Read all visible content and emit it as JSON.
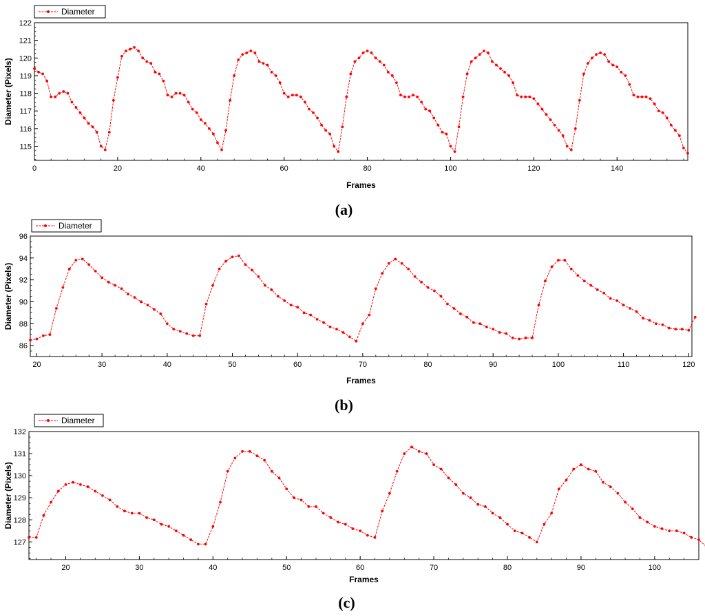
{
  "series_color": "#ff0000",
  "chart_data": [
    {
      "type": "line",
      "caption": "(a)",
      "xlabel": "Frames",
      "ylabel": "Diameter (Pixels)",
      "xlim": [
        0,
        157
      ],
      "ylim": [
        114.2,
        122
      ],
      "xticks": [
        0,
        20,
        40,
        60,
        80,
        100,
        120,
        140
      ],
      "yticks": [
        115,
        116,
        117,
        118,
        119,
        120,
        121,
        122
      ],
      "legend": "top-left",
      "grid": false,
      "series": [
        {
          "name": "Diameter",
          "x0": 0,
          "values": [
            119.4,
            119.2,
            119.1,
            118.7,
            117.8,
            117.8,
            118.0,
            118.1,
            118.0,
            117.5,
            117.2,
            116.9,
            116.6,
            116.3,
            116.1,
            115.8,
            115.0,
            114.8,
            115.8,
            117.6,
            118.9,
            120.1,
            120.4,
            120.5,
            120.6,
            120.4,
            120.0,
            119.8,
            119.7,
            119.2,
            119.1,
            118.7,
            117.9,
            117.8,
            118.0,
            118.0,
            117.9,
            117.5,
            117.1,
            116.9,
            116.5,
            116.3,
            116.0,
            115.7,
            115.2,
            114.8,
            115.9,
            117.6,
            119.0,
            119.9,
            120.2,
            120.3,
            120.4,
            120.3,
            119.8,
            119.7,
            119.6,
            119.2,
            119.0,
            118.6,
            118.0,
            117.8,
            117.9,
            117.9,
            117.8,
            117.5,
            117.1,
            116.9,
            116.6,
            116.2,
            115.9,
            115.7,
            115.0,
            114.7,
            116.1,
            117.8,
            119.1,
            119.8,
            120.0,
            120.3,
            120.4,
            120.3,
            120.0,
            119.8,
            119.6,
            119.2,
            119.0,
            118.6,
            117.9,
            117.8,
            117.8,
            117.9,
            117.8,
            117.5,
            117.1,
            117.0,
            116.6,
            116.2,
            115.8,
            115.7,
            115.0,
            114.7,
            116.1,
            117.8,
            119.1,
            119.8,
            120.0,
            120.2,
            120.4,
            120.3,
            119.8,
            119.6,
            119.4,
            119.2,
            119.0,
            118.6,
            117.9,
            117.8,
            117.8,
            117.8,
            117.7,
            117.4,
            117.1,
            116.8,
            116.5,
            116.2,
            115.9,
            115.6,
            115.0,
            114.8,
            116.0,
            117.6,
            119.1,
            119.7,
            120.0,
            120.2,
            120.3,
            120.2,
            119.8,
            119.6,
            119.5,
            119.2,
            119.0,
            118.5,
            117.9,
            117.8,
            117.8,
            117.8,
            117.7,
            117.4,
            117.0,
            116.9,
            116.6,
            116.2,
            115.9,
            115.6,
            114.9,
            114.6
          ]
        }
      ]
    },
    {
      "type": "line",
      "caption": "(b)",
      "xlabel": "Frames",
      "ylabel": "Diameter (Pixels)",
      "xlim": [
        19,
        120.5
      ],
      "ylim": [
        85,
        96
      ],
      "xticks": [
        20,
        30,
        40,
        50,
        60,
        70,
        80,
        90,
        100,
        110,
        120
      ],
      "yticks": [
        86,
        88,
        90,
        92,
        94,
        96
      ],
      "legend": "top-left",
      "grid": false,
      "series": [
        {
          "name": "Diameter",
          "x0": 19,
          "values": [
            86.5,
            86.6,
            86.9,
            87.0,
            89.4,
            91.3,
            93.0,
            93.8,
            93.9,
            93.4,
            92.8,
            92.2,
            91.8,
            91.5,
            91.2,
            90.7,
            90.4,
            90.0,
            89.7,
            89.3,
            88.9,
            88.0,
            87.5,
            87.3,
            87.1,
            86.9,
            86.9,
            89.8,
            91.5,
            93.0,
            93.7,
            94.1,
            94.2,
            93.4,
            92.9,
            92.3,
            91.5,
            91.1,
            90.5,
            90.1,
            89.7,
            89.5,
            89.0,
            88.8,
            88.4,
            88.1,
            87.7,
            87.5,
            87.2,
            86.8,
            86.4,
            88.0,
            88.8,
            91.2,
            92.6,
            93.5,
            93.9,
            93.5,
            93.0,
            92.3,
            91.8,
            91.3,
            91.0,
            90.5,
            89.8,
            89.4,
            88.9,
            88.6,
            88.1,
            88.0,
            87.7,
            87.5,
            87.2,
            87.1,
            86.7,
            86.6,
            86.7,
            86.7,
            89.7,
            91.9,
            93.2,
            93.8,
            93.8,
            93.0,
            92.4,
            91.9,
            91.5,
            91.1,
            90.8,
            90.3,
            90.1,
            89.7,
            89.4,
            89.1,
            88.5,
            88.3,
            88.0,
            87.9,
            87.6,
            87.5,
            87.5,
            87.4,
            88.6
          ]
        }
      ]
    },
    {
      "type": "line",
      "caption": "(c)",
      "xlabel": "Frames",
      "ylabel": "Diameter (Pixels)",
      "xlim": [
        15,
        106
      ],
      "ylim": [
        126.2,
        132
      ],
      "xticks": [
        20,
        30,
        40,
        50,
        60,
        70,
        80,
        90,
        100
      ],
      "yticks": [
        127,
        128,
        129,
        130,
        131,
        132
      ],
      "legend": "top-left",
      "grid": false,
      "series": [
        {
          "name": "Diameter",
          "x0": 15,
          "values": [
            127.2,
            127.2,
            128.2,
            128.8,
            129.3,
            129.6,
            129.7,
            129.6,
            129.5,
            129.3,
            129.1,
            128.9,
            128.6,
            128.4,
            128.3,
            128.3,
            128.1,
            128.0,
            127.8,
            127.7,
            127.5,
            127.3,
            127.1,
            126.9,
            126.9,
            127.7,
            128.8,
            130.2,
            130.8,
            131.1,
            131.1,
            130.9,
            130.7,
            130.2,
            129.9,
            129.4,
            129.0,
            128.9,
            128.6,
            128.6,
            128.3,
            128.1,
            127.9,
            127.8,
            127.6,
            127.5,
            127.3,
            127.2,
            128.4,
            129.2,
            130.2,
            131.0,
            131.3,
            131.1,
            131.0,
            130.5,
            130.3,
            129.9,
            129.6,
            129.2,
            129.0,
            128.7,
            128.6,
            128.3,
            128.1,
            127.8,
            127.5,
            127.4,
            127.2,
            127.0,
            127.8,
            128.3,
            129.4,
            129.8,
            130.3,
            130.5,
            130.3,
            130.2,
            129.7,
            129.5,
            129.2,
            128.8,
            128.5,
            128.1,
            127.9,
            127.7,
            127.6,
            127.5,
            127.5,
            127.4,
            127.2,
            127.1,
            126.8,
            126.6
          ]
        }
      ]
    }
  ]
}
